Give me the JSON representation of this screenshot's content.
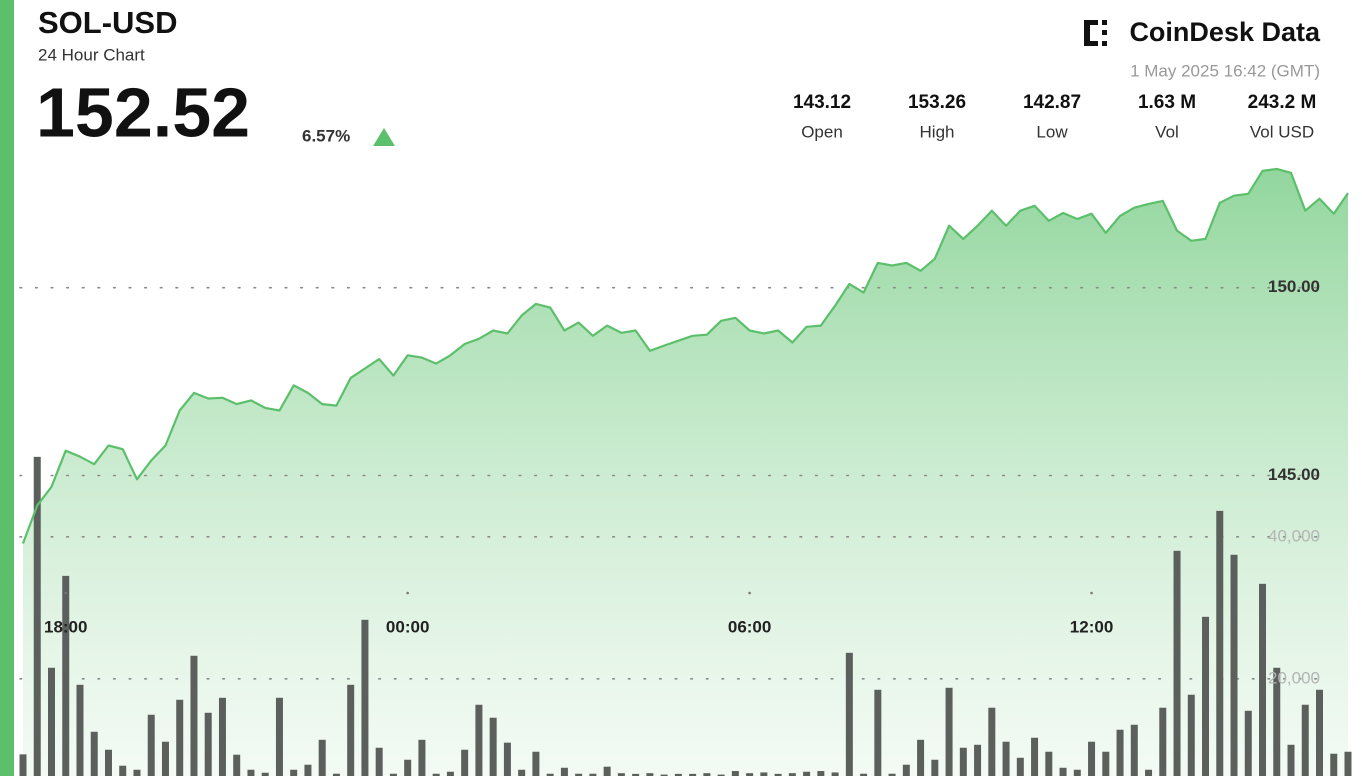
{
  "header": {
    "title": "SOL-USD",
    "subtitle": "24 Hour Chart",
    "price": "152.52",
    "change": "6.57%",
    "logo": "CoinDesk Data",
    "timestamp": "1 May 2025 16:42 (GMT)",
    "stats": [
      {
        "value": "143.12",
        "label": "Open"
      },
      {
        "value": "153.26",
        "label": "High"
      },
      {
        "value": "142.87",
        "label": "Low"
      },
      {
        "value": "1.63 M",
        "label": "Vol"
      },
      {
        "value": "243.2 M",
        "label": "Vol USD"
      }
    ]
  },
  "chart_data": {
    "type": "combo",
    "grid": true,
    "categories": [
      null,
      null,
      null,
      "18:00",
      null,
      null,
      null,
      null,
      null,
      null,
      null,
      null,
      null,
      null,
      null,
      null,
      null,
      null,
      null,
      null,
      null,
      null,
      null,
      null,
      null,
      null,
      null,
      "00:00",
      null,
      null,
      null,
      null,
      null,
      null,
      null,
      null,
      null,
      null,
      null,
      null,
      null,
      null,
      null,
      null,
      null,
      null,
      null,
      null,
      null,
      null,
      null,
      "06:00",
      null,
      null,
      null,
      null,
      null,
      null,
      null,
      null,
      null,
      null,
      null,
      null,
      null,
      null,
      null,
      null,
      null,
      null,
      null,
      null,
      null,
      null,
      null,
      "12:00",
      null,
      null,
      null,
      null,
      null,
      null,
      null,
      null,
      null,
      null,
      null,
      null,
      null,
      null,
      null,
      null,
      null,
      null
    ],
    "ylim": [
      137,
      153.4
    ],
    "yticks": [
      {
        "value": 150,
        "label": "150.00"
      },
      {
        "value": 145,
        "label": "145.00"
      }
    ],
    "y2lim": [
      6300,
      93100
    ],
    "y2ticks": [
      {
        "value": 40000,
        "label": "40,000"
      },
      {
        "value": 20000,
        "label": "20,000"
      }
    ],
    "series": [
      {
        "type": "area",
        "color": "#5cbf6c",
        "values": [
          143.19,
          144.2,
          144.7,
          145.66,
          145.5,
          145.3,
          145.8,
          145.7,
          144.9,
          145.4,
          145.8,
          146.73,
          147.2,
          147.05,
          147.07,
          146.9,
          147.0,
          146.8,
          146.73,
          147.4,
          147.2,
          146.9,
          146.86,
          147.6,
          147.85,
          148.1,
          147.66,
          148.2,
          148.14,
          147.98,
          148.2,
          148.5,
          148.64,
          148.86,
          148.78,
          149.26,
          149.57,
          149.47,
          148.86,
          149.07,
          148.72,
          148.99,
          148.8,
          148.86,
          148.32,
          148.46,
          148.59,
          148.72,
          148.75,
          149.12,
          149.2,
          148.86,
          148.78,
          148.86,
          148.54,
          148.96,
          148.99,
          149.52,
          150.1,
          149.87,
          150.66,
          150.59,
          150.66,
          150.45,
          150.77,
          151.65,
          151.3,
          151.65,
          152.05,
          151.65,
          152.05,
          152.18,
          151.78,
          151.99,
          151.83,
          151.97,
          151.46,
          151.91,
          152.13,
          152.23,
          152.31,
          151.52,
          151.25,
          151.3,
          152.26,
          152.45,
          152.5,
          153.11,
          153.16,
          153.06,
          152.05,
          152.37,
          151.97,
          152.52
        ]
      },
      {
        "type": "bar",
        "axis": "y2",
        "color": "#5b605c",
        "values": [
          9350,
          51270,
          21550,
          34500,
          19150,
          12530,
          10000,
          7750,
          7180,
          14930,
          11130,
          17040,
          23240,
          15210,
          17320,
          9300,
          7180,
          6760,
          17320,
          7180,
          7890,
          11400,
          6620,
          19150,
          28310,
          10280,
          6620,
          8590,
          11400,
          6620,
          6900,
          10000,
          16340,
          14510,
          11000,
          7180,
          9720,
          6620,
          7460,
          6620,
          6620,
          7610,
          6700,
          6600,
          6700,
          6500,
          6600,
          6600,
          6700,
          6500,
          7000,
          6700,
          6800,
          6600,
          6700,
          6900,
          7000,
          6800,
          23660,
          6620,
          18450,
          6620,
          7890,
          11400,
          8590,
          18730,
          10280,
          10700,
          15920,
          11130,
          8870,
          11690,
          9720,
          7460,
          7180,
          11130,
          9720,
          12820,
          13520,
          7180,
          15920,
          38030,
          17750,
          28730,
          43660,
          37470,
          15490,
          33380,
          21550,
          10700,
          16340,
          18450,
          9440,
          9720
        ]
      }
    ]
  }
}
